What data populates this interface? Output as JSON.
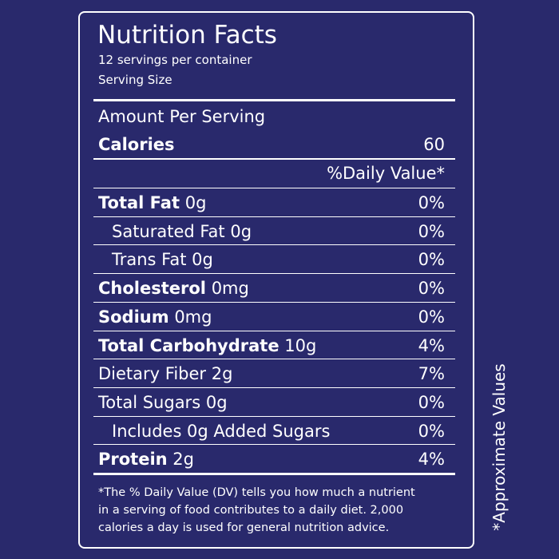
{
  "header": {
    "title": "Nutrition Facts",
    "servings": "12 servings per container",
    "serving_size": "Serving Size"
  },
  "amount_per_serving": "Amount Per Serving",
  "calories": {
    "label": "Calories",
    "value": "60"
  },
  "daily_value_header": "%Daily Value*",
  "rows": [
    {
      "label": "Total Fat",
      "amount": "0g",
      "dv": "0%",
      "bold": true,
      "indent": false
    },
    {
      "label": "Saturated Fat",
      "amount": "0g",
      "dv": "0%",
      "bold": false,
      "indent": true
    },
    {
      "label": "Trans Fat",
      "amount": "0g",
      "dv": "0%",
      "bold": false,
      "indent": true
    },
    {
      "label": "Cholesterol",
      "amount": "0mg",
      "dv": "0%",
      "bold": true,
      "indent": false
    },
    {
      "label": "Sodium",
      "amount": "0mg",
      "dv": "0%",
      "bold": true,
      "indent": false
    },
    {
      "label": "Total Carbohydrate",
      "amount": "10g",
      "dv": "4%",
      "bold": true,
      "indent": false
    },
    {
      "label": "Dietary Fiber",
      "amount": "2g",
      "dv": "7%",
      "bold": false,
      "indent": false
    },
    {
      "label": "Total Sugars",
      "amount": "0g",
      "dv": "0%",
      "bold": false,
      "indent": false
    },
    {
      "label": "Includes 0g Added Sugars",
      "amount": "",
      "dv": "0%",
      "bold": false,
      "indent": true
    },
    {
      "label": "Protein",
      "amount": "2g",
      "dv": "4%",
      "bold": true,
      "indent": false
    }
  ],
  "footnote": [
    "*The % Daily Value (DV) tells you how much a nutrient",
    "in a serving of food contributes to a daily diet. 2,000",
    "calories a day is used for general nutrition advice."
  ],
  "side_note": "*Approximate Values"
}
